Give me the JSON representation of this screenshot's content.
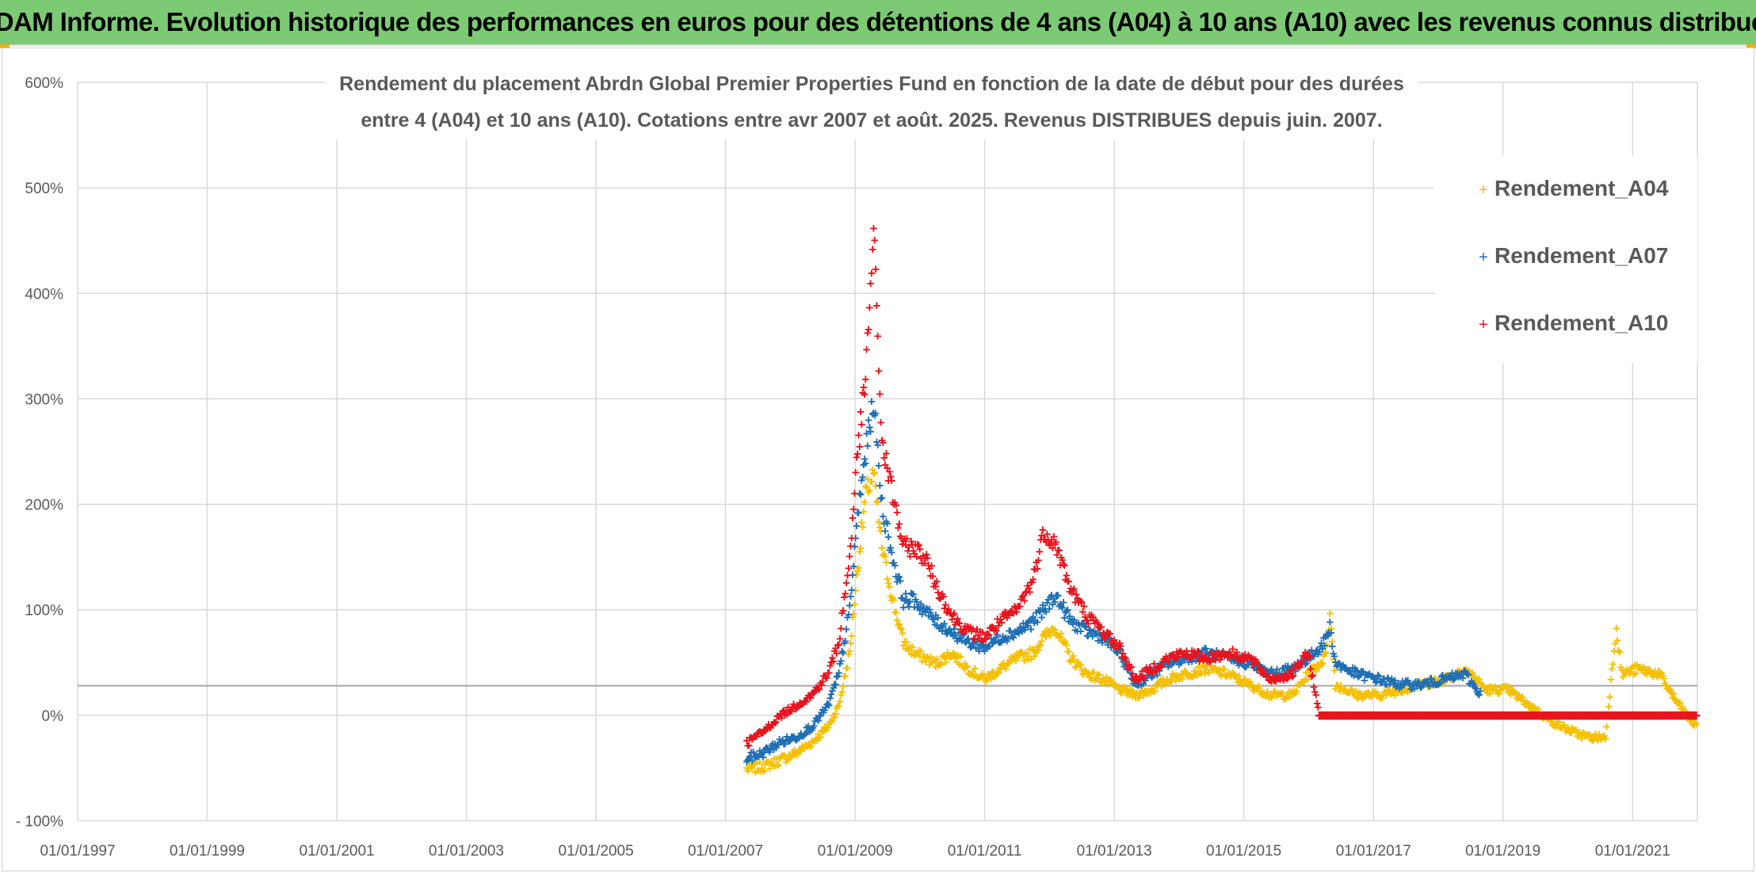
{
  "banner": {
    "title": "ADAM Informe. Evolution historique des performances en euros pour des détentions de 4 ans (A04) à 10 ans (A10) avec les revenus connus distribués"
  },
  "chart_data": {
    "type": "scatter",
    "title_lines": [
      "Rendement du placement Abrdn Global Premier Properties Fund en fonction de la date de début pour des durées",
      "entre 4 (A04) et 10 ans (A10). Cotations entre avr 2007 et août. 2025. Revenus DISTRIBUES depuis juin. 2007."
    ],
    "x_ticks": [
      "01/01/1997",
      "01/01/1999",
      "01/01/2001",
      "01/01/2003",
      "01/01/2005",
      "01/01/2007",
      "01/01/2009",
      "01/01/2011",
      "01/01/2013",
      "01/01/2015",
      "01/01/2017",
      "01/01/2019",
      "01/01/2021"
    ],
    "y_ticks": [
      "- 100%",
      "0%",
      "100%",
      "200%",
      "300%",
      "400%",
      "500%",
      "600%"
    ],
    "y_tick_values": [
      -100,
      0,
      100,
      200,
      300,
      400,
      500,
      600
    ],
    "xlim": [
      "1997-01-01",
      "2022-01-01"
    ],
    "ylim": [
      -100,
      600
    ],
    "grid": true,
    "reference_line_y": 28,
    "legend_position": "top-right",
    "series": [
      {
        "name": "Rendement_A04",
        "color": "#f5c000",
        "points": [
          [
            "2007-05-01",
            -50
          ],
          [
            "2007-08-01",
            -48
          ],
          [
            "2007-11-01",
            -42
          ],
          [
            "2008-02-01",
            -35
          ],
          [
            "2008-05-01",
            -25
          ],
          [
            "2008-08-01",
            -10
          ],
          [
            "2008-10-01",
            10
          ],
          [
            "2008-12-01",
            60
          ],
          [
            "2009-01-15",
            140
          ],
          [
            "2009-03-01",
            210
          ],
          [
            "2009-04-15",
            230
          ],
          [
            "2009-06-01",
            160
          ],
          [
            "2009-08-01",
            110
          ],
          [
            "2009-10-01",
            70
          ],
          [
            "2009-12-01",
            60
          ],
          [
            "2010-02-01",
            55
          ],
          [
            "2010-04-01",
            50
          ],
          [
            "2010-07-01",
            60
          ],
          [
            "2010-10-01",
            45
          ],
          [
            "2011-01-01",
            35
          ],
          [
            "2011-04-01",
            45
          ],
          [
            "2011-07-01",
            55
          ],
          [
            "2011-10-01",
            60
          ],
          [
            "2011-12-01",
            75
          ],
          [
            "2012-02-01",
            85
          ],
          [
            "2012-05-01",
            55
          ],
          [
            "2012-08-01",
            40
          ],
          [
            "2012-11-01",
            35
          ],
          [
            "2013-02-01",
            25
          ],
          [
            "2013-05-01",
            20
          ],
          [
            "2013-08-01",
            25
          ],
          [
            "2013-11-01",
            35
          ],
          [
            "2014-02-01",
            40
          ],
          [
            "2014-06-01",
            45
          ],
          [
            "2014-10-01",
            40
          ],
          [
            "2015-02-01",
            30
          ],
          [
            "2015-06-01",
            20
          ],
          [
            "2015-10-01",
            20
          ],
          [
            "2016-01-01",
            40
          ],
          [
            "2016-04-01",
            55
          ],
          [
            "2016-05-01",
            95
          ],
          [
            "2016-06-01",
            30
          ],
          [
            "2016-10-01",
            20
          ],
          [
            "2017-02-01",
            20
          ],
          [
            "2017-06-01",
            25
          ],
          [
            "2017-10-01",
            30
          ],
          [
            "2018-02-01",
            35
          ],
          [
            "2018-06-01",
            45
          ],
          [
            "2018-10-01",
            25
          ],
          [
            "2019-02-01",
            25
          ],
          [
            "2019-06-01",
            10
          ],
          [
            "2019-10-01",
            -5
          ],
          [
            "2020-02-01",
            -15
          ],
          [
            "2020-05-01",
            -20
          ],
          [
            "2020-08-01",
            -20
          ],
          [
            "2020-10-01",
            85
          ],
          [
            "2020-11-01",
            40
          ],
          [
            "2021-02-01",
            45
          ],
          [
            "2021-06-01",
            40
          ],
          [
            "2021-09-01",
            15
          ],
          [
            "2021-12-01",
            -5
          ],
          [
            "2022-01-01",
            -10
          ]
        ]
      },
      {
        "name": "Rendement_A07",
        "color": "#1f6fb5",
        "points": [
          [
            "2007-05-01",
            -40
          ],
          [
            "2007-08-01",
            -35
          ],
          [
            "2007-11-01",
            -25
          ],
          [
            "2008-02-01",
            -20
          ],
          [
            "2008-05-01",
            -10
          ],
          [
            "2008-08-01",
            10
          ],
          [
            "2008-10-01",
            40
          ],
          [
            "2008-12-01",
            100
          ],
          [
            "2009-01-15",
            190
          ],
          [
            "2009-03-01",
            250
          ],
          [
            "2009-04-15",
            300
          ],
          [
            "2009-06-01",
            200
          ],
          [
            "2009-08-01",
            150
          ],
          [
            "2009-10-01",
            110
          ],
          [
            "2009-12-01",
            110
          ],
          [
            "2010-02-01",
            100
          ],
          [
            "2010-04-01",
            90
          ],
          [
            "2010-07-01",
            80
          ],
          [
            "2010-10-01",
            70
          ],
          [
            "2011-01-01",
            65
          ],
          [
            "2011-04-01",
            75
          ],
          [
            "2011-07-01",
            80
          ],
          [
            "2011-10-01",
            90
          ],
          [
            "2011-12-01",
            100
          ],
          [
            "2012-02-01",
            115
          ],
          [
            "2012-05-01",
            90
          ],
          [
            "2012-08-01",
            80
          ],
          [
            "2012-11-01",
            75
          ],
          [
            "2013-02-01",
            60
          ],
          [
            "2013-05-01",
            30
          ],
          [
            "2013-08-01",
            40
          ],
          [
            "2013-11-01",
            50
          ],
          [
            "2014-02-01",
            55
          ],
          [
            "2014-06-01",
            60
          ],
          [
            "2014-10-01",
            55
          ],
          [
            "2015-02-01",
            50
          ],
          [
            "2015-06-01",
            40
          ],
          [
            "2015-10-01",
            45
          ],
          [
            "2016-01-01",
            55
          ],
          [
            "2016-04-01",
            70
          ],
          [
            "2016-05-01",
            85
          ],
          [
            "2016-06-01",
            50
          ],
          [
            "2016-10-01",
            40
          ],
          [
            "2017-02-01",
            35
          ],
          [
            "2017-06-01",
            30
          ],
          [
            "2017-10-01",
            30
          ],
          [
            "2018-02-01",
            35
          ],
          [
            "2018-06-01",
            40
          ],
          [
            "2018-09-01",
            20
          ]
        ]
      },
      {
        "name": "Rendement_A10",
        "color": "#e8141e",
        "points": [
          [
            "2007-05-01",
            -25
          ],
          [
            "2007-08-01",
            -15
          ],
          [
            "2007-11-01",
            0
          ],
          [
            "2008-02-01",
            10
          ],
          [
            "2008-05-01",
            20
          ],
          [
            "2008-08-01",
            40
          ],
          [
            "2008-10-01",
            70
          ],
          [
            "2008-12-01",
            150
          ],
          [
            "2009-01-15",
            250
          ],
          [
            "2009-03-01",
            320
          ],
          [
            "2009-04-15",
            460
          ],
          [
            "2009-06-01",
            260
          ],
          [
            "2009-08-01",
            210
          ],
          [
            "2009-10-01",
            160
          ],
          [
            "2009-12-01",
            160
          ],
          [
            "2010-02-01",
            150
          ],
          [
            "2010-04-01",
            125
          ],
          [
            "2010-07-01",
            95
          ],
          [
            "2010-10-01",
            80
          ],
          [
            "2011-01-01",
            75
          ],
          [
            "2011-04-01",
            90
          ],
          [
            "2011-07-01",
            100
          ],
          [
            "2011-10-01",
            130
          ],
          [
            "2011-12-01",
            175
          ],
          [
            "2012-02-01",
            165
          ],
          [
            "2012-05-01",
            120
          ],
          [
            "2012-08-01",
            95
          ],
          [
            "2012-11-01",
            80
          ],
          [
            "2013-02-01",
            65
          ],
          [
            "2013-05-01",
            35
          ],
          [
            "2013-08-01",
            45
          ],
          [
            "2013-11-01",
            55
          ],
          [
            "2014-02-01",
            60
          ],
          [
            "2014-06-01",
            55
          ],
          [
            "2014-10-01",
            60
          ],
          [
            "2015-02-01",
            55
          ],
          [
            "2015-06-01",
            35
          ],
          [
            "2015-10-01",
            40
          ],
          [
            "2016-01-01",
            60
          ],
          [
            "2016-03-01",
            0
          ],
          [
            "2022-01-01",
            0
          ]
        ]
      }
    ]
  }
}
